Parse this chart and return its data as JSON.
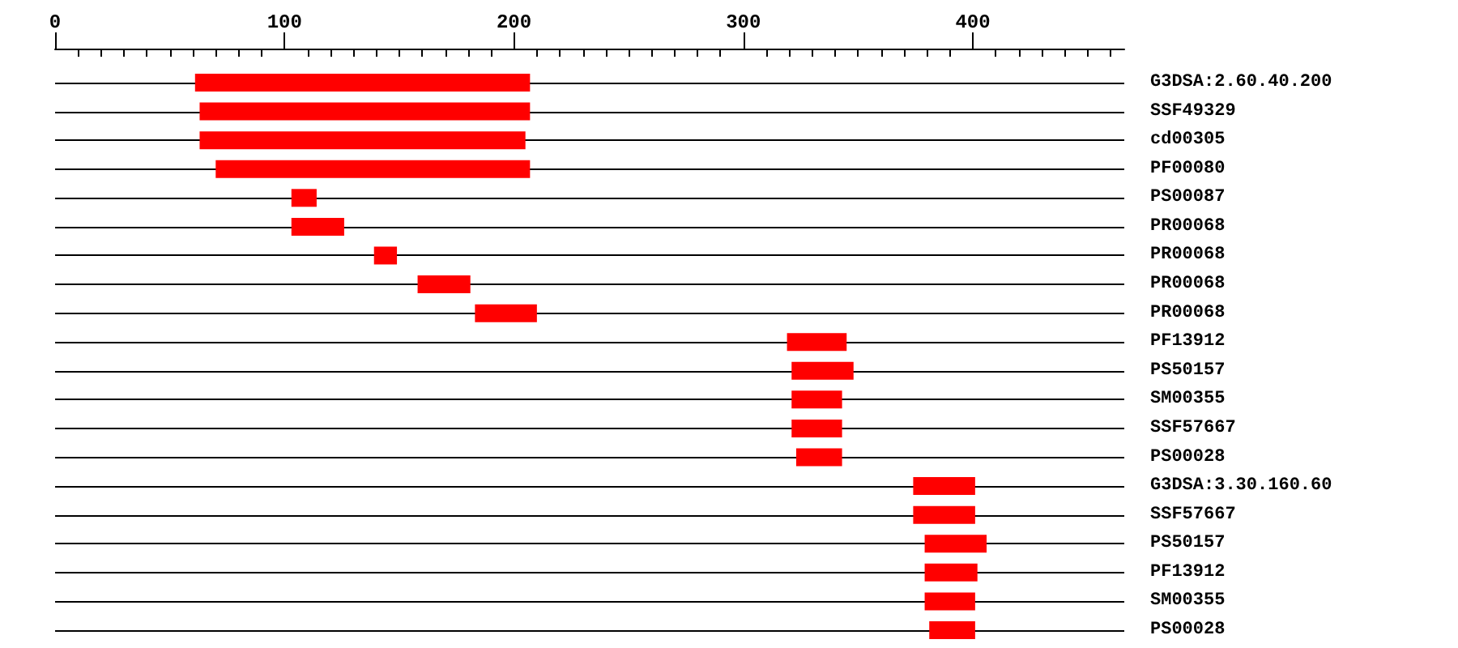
{
  "chart_data": {
    "type": "bar",
    "orientation": "horizontal",
    "color": "#ff0000",
    "grid": "y",
    "categories": [
      "G3DSA:2.60.40.200",
      "SSF49329",
      "cd00305",
      "PF00080",
      "PS00087",
      "PR00068",
      "PR00068",
      "PR00068",
      "PR00068",
      "PF13912",
      "PS50157",
      "SM00355",
      "SSF57667",
      "PS00028",
      "G3DSA:3.30.160.60",
      "SSF57667",
      "PS50157",
      "PF13912",
      "SM00355",
      "PS00028"
    ],
    "base": [
      61,
      63,
      63,
      70,
      103,
      103,
      139,
      158,
      183,
      319,
      321,
      321,
      321,
      323,
      374,
      374,
      379,
      379,
      379,
      381
    ],
    "values": [
      146,
      144,
      142,
      137,
      11,
      23,
      10,
      23,
      27,
      26,
      27,
      22,
      22,
      20,
      27,
      27,
      27,
      23,
      22,
      20
    ],
    "xlim": [
      0,
      466
    ],
    "xticks": [
      0,
      100,
      200,
      300,
      400
    ]
  }
}
